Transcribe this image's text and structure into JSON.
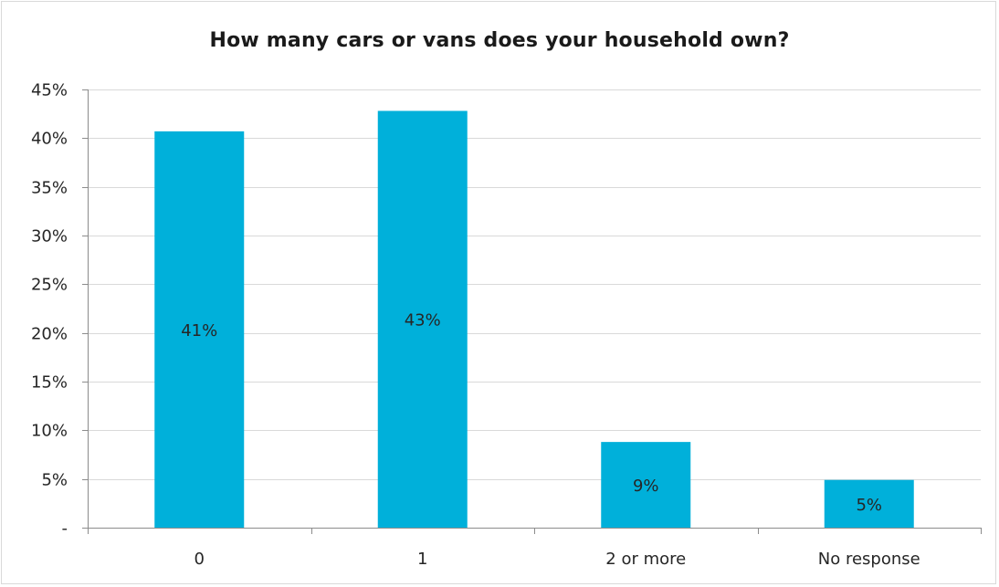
{
  "chart_data": {
    "type": "bar",
    "title": "How many cars or vans does your household own?",
    "categories": [
      "0",
      "1",
      "2 or more",
      "No response"
    ],
    "values": [
      40.7,
      42.8,
      8.8,
      4.9
    ],
    "data_labels": [
      "41%",
      "43%",
      "9%",
      "5%"
    ],
    "ylim": [
      0,
      45
    ],
    "y_ticks": [
      0,
      5,
      10,
      15,
      20,
      25,
      30,
      35,
      40,
      45
    ],
    "y_tick_labels": [
      "-",
      "5%",
      "10%",
      "15%",
      "20%",
      "25%",
      "30%",
      "35%",
      "40%",
      "45%"
    ],
    "grid": true,
    "legend": "none",
    "bar_color": "#00B0DA",
    "grid_color": "#d9d9d9"
  }
}
